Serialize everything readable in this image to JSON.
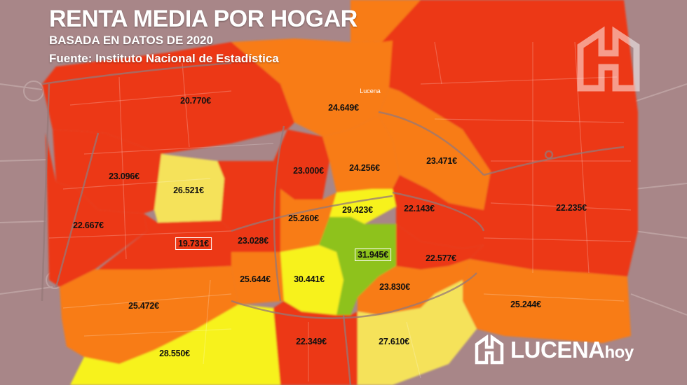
{
  "header": {
    "title": "RENTA MEDIA POR HOGAR",
    "subtitle": "BASADA EN DATOS DE 2020",
    "source": "Fuente: Instituto Nacional de Estadística"
  },
  "colors": {
    "red": "#ec3817",
    "orange": "#f87c16",
    "yellow": "#f7f21c",
    "pale_yellow": "#f5e25a",
    "green": "#8ec21c",
    "background": "#a88688"
  },
  "map": {
    "town_label": "Lucena",
    "zones": [
      {
        "id": "z1",
        "income": "20.770€",
        "level": "red"
      },
      {
        "id": "z2",
        "income": "24.649€",
        "level": "orange"
      },
      {
        "id": "z3",
        "income": "23.096€",
        "level": "red"
      },
      {
        "id": "z4",
        "income": "26.521€",
        "level": "pale_yellow"
      },
      {
        "id": "z5",
        "income": "23.000€",
        "level": "red"
      },
      {
        "id": "z6",
        "income": "24.256€",
        "level": "orange"
      },
      {
        "id": "z7",
        "income": "23.471€",
        "level": "orange"
      },
      {
        "id": "z8",
        "income": "22.667€",
        "level": "red"
      },
      {
        "id": "z9",
        "income": "19.731€",
        "level": "red",
        "highlight": "lowest"
      },
      {
        "id": "z10",
        "income": "23.028€",
        "level": "red"
      },
      {
        "id": "z11",
        "income": "25.260€",
        "level": "orange"
      },
      {
        "id": "z12",
        "income": "29.423€",
        "level": "yellow"
      },
      {
        "id": "z13",
        "income": "22.143€",
        "level": "red"
      },
      {
        "id": "z14",
        "income": "22.235€",
        "level": "red"
      },
      {
        "id": "z15",
        "income": "31.945€",
        "level": "green",
        "highlight": "highest"
      },
      {
        "id": "z16",
        "income": "22.577€",
        "level": "red"
      },
      {
        "id": "z17",
        "income": "25.644€",
        "level": "orange"
      },
      {
        "id": "z18",
        "income": "30.441€",
        "level": "yellow"
      },
      {
        "id": "z19",
        "income": "23.830€",
        "level": "orange"
      },
      {
        "id": "z20",
        "income": "25.472€",
        "level": "orange"
      },
      {
        "id": "z21",
        "income": "25.244€",
        "level": "orange"
      },
      {
        "id": "z22",
        "income": "28.550€",
        "level": "yellow"
      },
      {
        "id": "z23",
        "income": "22.349€",
        "level": "red"
      },
      {
        "id": "z24",
        "income": "27.610€",
        "level": "pale_yellow"
      }
    ]
  },
  "brand": {
    "name": "LUCENA",
    "suffix": "hoy"
  }
}
